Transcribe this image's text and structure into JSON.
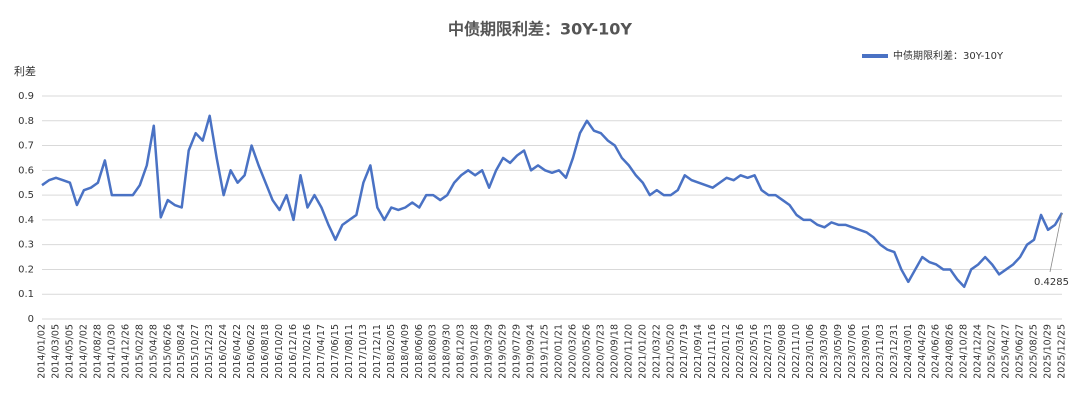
{
  "chart_data": {
    "type": "line",
    "title": "中债期限利差：30Y-10Y",
    "y_label": "利差",
    "categories": [
      "2014/01/02",
      null,
      "2014/03/05",
      null,
      "2014/05/05",
      null,
      "2014/07/02",
      null,
      "2014/08/28",
      null,
      "2014/10/30",
      null,
      "2014/12/26",
      null,
      "2015/02/28",
      null,
      "2015/04/28",
      null,
      "2015/06/26",
      null,
      "2015/08/24",
      null,
      "2015/10/27",
      null,
      "2015/12/23",
      null,
      "2016/02/24",
      null,
      "2016/04/22",
      null,
      "2016/06/22",
      null,
      "2016/08/18",
      null,
      "2016/10/20",
      null,
      "2016/12/16",
      null,
      "2017/02/16",
      null,
      "2017/04/17",
      null,
      "2017/06/15",
      null,
      "2017/08/11",
      null,
      "2017/10/13",
      null,
      "2017/12/11",
      null,
      "2018/02/05",
      null,
      "2018/04/09",
      null,
      "2018/06/06",
      null,
      "2018/08/03",
      null,
      "2018/09/30",
      null,
      "2018/12/03",
      null,
      "2019/01/28",
      null,
      "2019/03/29",
      null,
      "2019/05/29",
      null,
      "2019/07/29",
      null,
      "2019/09/24",
      null,
      "2019/11/25",
      null,
      "2020/01/21",
      null,
      "2020/03/26",
      null,
      "2020/05/26",
      null,
      "2020/07/23",
      null,
      "2020/09/18",
      null,
      "2020/11/20",
      null,
      "2021/01/20",
      null,
      "2021/03/22",
      null,
      "2021/05/20",
      null,
      "2021/07/19",
      null,
      "2021/09/14",
      null,
      "2021/11/16",
      null,
      "2022/01/12",
      null,
      "2022/03/16",
      null,
      "2022/05/16",
      null,
      "2022/07/13",
      null,
      "2022/09/08",
      null,
      "2022/11/10",
      null,
      "2023/01/06",
      null,
      "2023/03/09",
      null,
      "2023/05/09",
      null,
      "2023/07/06",
      null,
      "2023/09/01",
      null,
      "2023/11/03",
      null,
      "2023/12/31",
      null,
      "2024/03/01",
      null,
      "2024/04/29",
      null,
      "2024/06/26",
      null,
      "2024/08/26",
      null,
      "2024/10/28",
      null,
      "2024/12/24",
      null,
      "2025/02/27",
      null,
      "2025/04/27",
      null,
      "2025/06/27",
      null,
      "2025/08/25",
      null,
      "2025/10/29",
      null,
      "2025/12/25"
    ],
    "series": [
      {
        "name": "中债期限利差：30Y-10Y",
        "color": "#4a72c4",
        "values": [
          0.54,
          0.56,
          0.57,
          0.56,
          0.55,
          0.46,
          0.52,
          0.53,
          0.55,
          0.64,
          0.5,
          0.5,
          0.5,
          0.5,
          0.54,
          0.62,
          0.78,
          0.41,
          0.48,
          0.46,
          0.45,
          0.68,
          0.75,
          0.72,
          0.82,
          0.65,
          0.5,
          0.6,
          0.55,
          0.58,
          0.7,
          0.62,
          0.55,
          0.48,
          0.44,
          0.5,
          0.4,
          0.58,
          0.45,
          0.5,
          0.45,
          0.38,
          0.32,
          0.38,
          0.4,
          0.42,
          0.55,
          0.62,
          0.45,
          0.4,
          0.45,
          0.44,
          0.45,
          0.47,
          0.45,
          0.5,
          0.5,
          0.48,
          0.5,
          0.55,
          0.58,
          0.6,
          0.58,
          0.6,
          0.53,
          0.6,
          0.65,
          0.63,
          0.66,
          0.68,
          0.6,
          0.62,
          0.6,
          0.59,
          0.6,
          0.57,
          0.65,
          0.75,
          0.8,
          0.76,
          0.75,
          0.72,
          0.7,
          0.65,
          0.62,
          0.58,
          0.55,
          0.5,
          0.52,
          0.5,
          0.5,
          0.52,
          0.58,
          0.56,
          0.55,
          0.54,
          0.53,
          0.55,
          0.57,
          0.56,
          0.58,
          0.57,
          0.58,
          0.52,
          0.5,
          0.5,
          0.48,
          0.46,
          0.42,
          0.4,
          0.4,
          0.38,
          0.37,
          0.39,
          0.38,
          0.38,
          0.37,
          0.36,
          0.35,
          0.33,
          0.3,
          0.28,
          0.27,
          0.2,
          0.15,
          0.2,
          0.25,
          0.23,
          0.22,
          0.2,
          0.2,
          0.16,
          0.13,
          0.2,
          0.22,
          0.25,
          0.22,
          0.18,
          0.2,
          0.22,
          0.25,
          0.3,
          0.32,
          0.42,
          0.36,
          0.38,
          0.4285
        ]
      }
    ],
    "ylim": [
      0,
      0.9
    ],
    "yticks": [
      0,
      0.1,
      0.2,
      0.3,
      0.4,
      0.5,
      0.6,
      0.7,
      0.8,
      0.9
    ],
    "grid": true,
    "legend": "top-right"
  }
}
